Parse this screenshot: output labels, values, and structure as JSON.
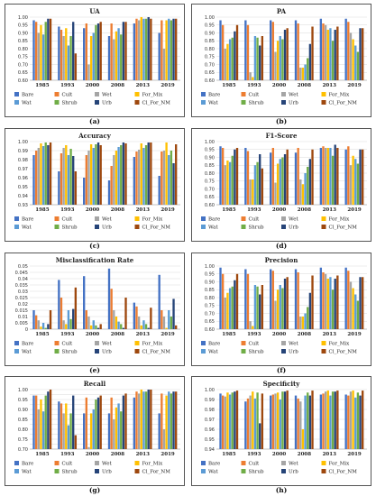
{
  "series": [
    {
      "name": "Bare",
      "color": "#4472C4"
    },
    {
      "name": "Cult",
      "color": "#ED7D31"
    },
    {
      "name": "Wet",
      "color": "#A5A5A5"
    },
    {
      "name": "For_Mix",
      "color": "#FFC000"
    },
    {
      "name": "Wat",
      "color": "#5B9BD5"
    },
    {
      "name": "Shrub",
      "color": "#70AD47"
    },
    {
      "name": "Urb",
      "color": "#264478"
    },
    {
      "name": "Cl_For_NM",
      "color": "#9E480E"
    }
  ],
  "panel_labels": [
    "(a)",
    "(b)",
    "(c)",
    "(d)",
    "(e)",
    "(f)",
    "(g)",
    "(h)"
  ],
  "chart_data": [
    {
      "type": "bar",
      "title": "UA",
      "categories": [
        "1985",
        "1993",
        "2000",
        "2008",
        "2013",
        "2019"
      ],
      "ylim": [
        0.6,
        1.0
      ],
      "ticks": [
        0.6,
        0.65,
        0.7,
        0.75,
        0.8,
        0.85,
        0.9,
        0.95,
        1.0
      ],
      "tick_labels": [
        "0.60",
        "0.65",
        "0.70",
        "0.75",
        "0.80",
        "0.85",
        "0.90",
        "0.95",
        "1.00"
      ],
      "legend": "bottom",
      "series": [
        {
          "name": "Bare",
          "values": [
            0.98,
            0.94,
            0.93,
            0.88,
            0.96,
            0.9
          ]
        },
        {
          "name": "Cult",
          "values": [
            0.97,
            0.92,
            0.96,
            0.96,
            0.99,
            0.98
          ]
        },
        {
          "name": "Wet",
          "values": [
            0.9,
            0.88,
            0.7,
            0.86,
            0.98,
            0.8
          ]
        },
        {
          "name": "For_Mix",
          "values": [
            0.95,
            0.93,
            0.88,
            0.91,
            1.0,
            0.98
          ]
        },
        {
          "name": "Wat",
          "values": [
            0.89,
            0.82,
            0.9,
            0.93,
            0.99,
            0.99
          ]
        },
        {
          "name": "Shrub",
          "values": [
            0.97,
            0.88,
            0.95,
            0.89,
            0.99,
            0.98
          ]
        },
        {
          "name": "Urb",
          "values": [
            0.99,
            0.97,
            0.96,
            0.97,
            1.0,
            0.99
          ]
        },
        {
          "name": "Cl_For_NM",
          "values": [
            0.99,
            0.77,
            0.97,
            0.97,
            0.99,
            0.99
          ]
        }
      ]
    },
    {
      "type": "bar",
      "title": "PA",
      "categories": [
        "1985",
        "1993",
        "2000",
        "2008",
        "2013",
        "2019"
      ],
      "ylim": [
        0.6,
        1.0
      ],
      "ticks": [
        0.6,
        0.65,
        0.7,
        0.75,
        0.8,
        0.85,
        0.9,
        0.95,
        1.0
      ],
      "tick_labels": [
        "0.60",
        "0.65",
        "0.70",
        "0.75",
        "0.80",
        "0.85",
        "0.90",
        "0.95",
        "1.00"
      ],
      "legend": "bottom",
      "series": [
        {
          "name": "Bare",
          "values": [
            0.98,
            0.98,
            0.98,
            0.98,
            0.99,
            0.99
          ]
        },
        {
          "name": "Cult",
          "values": [
            0.95,
            0.95,
            0.97,
            0.96,
            0.96,
            0.97
          ]
        },
        {
          "name": "Wet",
          "values": [
            0.8,
            0.65,
            0.78,
            0.68,
            0.95,
            0.9
          ]
        },
        {
          "name": "For_Mix",
          "values": [
            0.83,
            0.62,
            0.85,
            0.68,
            0.92,
            0.86
          ]
        },
        {
          "name": "Wat",
          "values": [
            0.86,
            0.88,
            0.88,
            0.7,
            0.93,
            0.82
          ]
        },
        {
          "name": "Shrub",
          "values": [
            0.87,
            0.87,
            0.86,
            0.74,
            0.85,
            0.78
          ]
        },
        {
          "name": "Urb",
          "values": [
            0.91,
            0.82,
            0.92,
            0.83,
            0.92,
            0.93
          ]
        },
        {
          "name": "Cl_For_NM",
          "values": [
            0.95,
            0.88,
            0.93,
            0.94,
            0.94,
            0.93
          ]
        }
      ]
    },
    {
      "type": "bar",
      "title": "Accuracy",
      "categories": [
        "1985",
        "1993",
        "2000",
        "2008",
        "2013",
        "2019"
      ],
      "ylim": [
        0.93,
        1.0
      ],
      "ticks": [
        0.93,
        0.94,
        0.95,
        0.96,
        0.97,
        0.98,
        0.99,
        1.0
      ],
      "tick_labels": [
        "0.93",
        "0.94",
        "0.95",
        "0.96",
        "0.97",
        "0.98",
        "0.99",
        "1.00"
      ],
      "legend": "bottom",
      "series": [
        {
          "name": "Bare",
          "values": [
            0.985,
            0.967,
            0.96,
            0.957,
            0.983,
            0.962
          ]
        },
        {
          "name": "Cult",
          "values": [
            0.99,
            0.987,
            0.985,
            0.973,
            0.989,
            0.989
          ]
        },
        {
          "name": "Wet",
          "values": [
            0.993,
            0.993,
            0.99,
            0.985,
            0.991,
            0.99
          ]
        },
        {
          "name": "For_Mix",
          "values": [
            0.998,
            0.996,
            0.997,
            0.99,
            0.998,
            0.999
          ]
        },
        {
          "name": "Wat",
          "values": [
            0.995,
            0.985,
            0.993,
            0.994,
            0.993,
            0.985
          ]
        },
        {
          "name": "Shrub",
          "values": [
            0.999,
            0.992,
            0.997,
            0.996,
            0.996,
            0.99
          ]
        },
        {
          "name": "Urb",
          "values": [
            0.996,
            0.984,
            0.999,
            0.999,
            0.999,
            0.976
          ]
        },
        {
          "name": "Cl_For_NM",
          "values": [
            0.999,
            0.967,
            0.996,
            0.998,
            0.999,
            0.997
          ]
        }
      ]
    },
    {
      "type": "bar",
      "title": "F1-Score",
      "categories": [
        "1985",
        "1993",
        "2000",
        "2008",
        "2013",
        "2019"
      ],
      "ylim": [
        0.6,
        1.0
      ],
      "ticks": [
        0.6,
        0.65,
        0.7,
        0.75,
        0.8,
        0.85,
        0.9,
        0.95,
        1.0
      ],
      "tick_labels": [
        "0.60",
        "0.65",
        "0.70",
        "0.75",
        "0.80",
        "0.85",
        "0.90",
        "0.95",
        "1.00"
      ],
      "legend": "bottom",
      "series": [
        {
          "name": "Bare",
          "values": [
            0.97,
            0.96,
            0.93,
            0.93,
            0.96,
            0.95
          ]
        },
        {
          "name": "Cult",
          "values": [
            0.96,
            0.94,
            0.96,
            0.96,
            0.97,
            0.97
          ]
        },
        {
          "name": "Wet",
          "values": [
            0.85,
            0.76,
            0.74,
            0.76,
            0.96,
            0.85
          ]
        },
        {
          "name": "For_Mix",
          "values": [
            0.88,
            0.76,
            0.86,
            0.73,
            0.96,
            0.91
          ]
        },
        {
          "name": "Wat",
          "values": [
            0.87,
            0.85,
            0.89,
            0.8,
            0.96,
            0.89
          ]
        },
        {
          "name": "Shrub",
          "values": [
            0.91,
            0.87,
            0.9,
            0.84,
            0.91,
            0.86
          ]
        },
        {
          "name": "Urb",
          "values": [
            0.95,
            0.92,
            0.92,
            0.89,
            0.98,
            0.95
          ]
        },
        {
          "name": "Cl_For_NM",
          "values": [
            0.96,
            0.83,
            0.95,
            0.95,
            0.96,
            0.95
          ]
        }
      ]
    },
    {
      "type": "bar",
      "title": "Misclassification Rate",
      "categories": [
        "1985",
        "1993",
        "2000",
        "2008",
        "2013",
        "2019"
      ],
      "ylim": [
        0,
        0.05
      ],
      "ticks": [
        0,
        0.005,
        0.01,
        0.015,
        0.02,
        0.025,
        0.03,
        0.035,
        0.04,
        0.045,
        0.05
      ],
      "tick_labels": [
        "0",
        "0.005",
        "0.01",
        "0.015",
        "0.02",
        "0.025",
        "0.03",
        "0.035",
        "0.04",
        "0.045",
        "0.05"
      ],
      "legend": "bottom",
      "series": [
        {
          "name": "Bare",
          "values": [
            0.015,
            0.039,
            0.042,
            0.048,
            0.021,
            0.043
          ]
        },
        {
          "name": "Cult",
          "values": [
            0.011,
            0.025,
            0.015,
            0.032,
            0.018,
            0.015
          ]
        },
        {
          "name": "Wet",
          "values": [
            0.007,
            0.007,
            0.01,
            0.015,
            0.01,
            0.01
          ]
        },
        {
          "name": "For_Mix",
          "values": [
            0.002,
            0.004,
            0.003,
            0.01,
            0.003,
            0.001
          ]
        },
        {
          "name": "Wat",
          "values": [
            0.005,
            0.015,
            0.007,
            0.006,
            0.007,
            0.015
          ]
        },
        {
          "name": "Shrub",
          "values": [
            0.001,
            0.008,
            0.003,
            0.004,
            0.004,
            0.01
          ]
        },
        {
          "name": "Urb",
          "values": [
            0.004,
            0.016,
            0.001,
            0.001,
            0.001,
            0.024
          ]
        },
        {
          "name": "Cl_For_NM",
          "values": [
            0.015,
            0.033,
            0.004,
            0.025,
            0.017,
            0.003
          ]
        }
      ]
    },
    {
      "type": "bar",
      "title": "Precision",
      "categories": [
        "1985",
        "1993",
        "2000",
        "2008",
        "2013",
        "2019"
      ],
      "ylim": [
        0.6,
        1.0
      ],
      "ticks": [
        0.6,
        0.65,
        0.7,
        0.75,
        0.8,
        0.85,
        0.9,
        0.95,
        1.0
      ],
      "tick_labels": [
        "0.60",
        "0.65",
        "0.70",
        "0.75",
        "0.80",
        "0.85",
        "0.90",
        "0.95",
        "1.00"
      ],
      "legend": "bottom",
      "series": [
        {
          "name": "Bare",
          "values": [
            0.99,
            0.98,
            0.98,
            0.98,
            0.99,
            0.99
          ]
        },
        {
          "name": "Cult",
          "values": [
            0.95,
            0.95,
            0.97,
            0.96,
            0.96,
            0.97
          ]
        },
        {
          "name": "Wet",
          "values": [
            0.8,
            0.65,
            0.78,
            0.68,
            0.95,
            0.9
          ]
        },
        {
          "name": "For_Mix",
          "values": [
            0.83,
            0.62,
            0.85,
            0.68,
            0.92,
            0.86
          ]
        },
        {
          "name": "Wat",
          "values": [
            0.86,
            0.88,
            0.88,
            0.7,
            0.93,
            0.82
          ]
        },
        {
          "name": "Shrub",
          "values": [
            0.87,
            0.87,
            0.86,
            0.74,
            0.85,
            0.78
          ]
        },
        {
          "name": "Urb",
          "values": [
            0.91,
            0.82,
            0.92,
            0.83,
            0.92,
            0.93
          ]
        },
        {
          "name": "Cl_For_NM",
          "values": [
            0.95,
            0.88,
            0.93,
            0.94,
            0.94,
            0.93
          ]
        }
      ]
    },
    {
      "type": "bar",
      "title": "Recall",
      "categories": [
        "1985",
        "1993",
        "2000",
        "2008",
        "2013",
        "2019"
      ],
      "ylim": [
        0.7,
        1.0
      ],
      "ticks": [
        0.7,
        0.725,
        0.75,
        0.775,
        0.8,
        0.825,
        0.85,
        0.875,
        0.9,
        0.925,
        0.95,
        0.975,
        1.0
      ],
      "tick_labels": [
        "0.70",
        "",
        "0.75",
        "",
        "0.80",
        "",
        "0.85",
        "",
        "0.90",
        "",
        "0.95",
        "",
        "1.00"
      ],
      "legend": "bottom",
      "series": [
        {
          "name": "Bare",
          "values": [
            0.97,
            0.94,
            0.88,
            0.88,
            0.96,
            0.88
          ]
        },
        {
          "name": "Cult",
          "values": [
            0.97,
            0.93,
            0.96,
            0.96,
            0.99,
            0.98
          ]
        },
        {
          "name": "Wet",
          "values": [
            0.9,
            0.88,
            0.71,
            0.85,
            0.98,
            0.8
          ]
        },
        {
          "name": "For_Mix",
          "values": [
            0.95,
            0.93,
            0.88,
            0.91,
            1.0,
            0.97
          ]
        },
        {
          "name": "Wat",
          "values": [
            0.89,
            0.82,
            0.9,
            0.93,
            0.99,
            0.99
          ]
        },
        {
          "name": "Shrub",
          "values": [
            0.97,
            0.88,
            0.95,
            0.89,
            0.99,
            0.98
          ]
        },
        {
          "name": "Urb",
          "values": [
            0.99,
            0.97,
            0.96,
            0.97,
            1.0,
            0.99
          ]
        },
        {
          "name": "Cl_For_NM",
          "values": [
            1.0,
            0.77,
            0.97,
            0.98,
            1.0,
            0.99
          ]
        }
      ]
    },
    {
      "type": "bar",
      "title": "Specificity",
      "categories": [
        "1985",
        "1993",
        "2000",
        "2008",
        "2013",
        "2019"
      ],
      "ylim": [
        0.94,
        1.0
      ],
      "ticks": [
        0.94,
        0.95,
        0.96,
        0.97,
        0.98,
        0.99,
        1.0
      ],
      "tick_labels": [
        "0.94",
        "0.95",
        "0.96",
        "0.97",
        "0.98",
        "0.99",
        "1.00"
      ],
      "legend": "bottom",
      "series": [
        {
          "name": "Bare",
          "values": [
            0.996,
            0.988,
            0.994,
            0.994,
            0.995,
            0.995
          ]
        },
        {
          "name": "Cult",
          "values": [
            0.994,
            0.991,
            0.995,
            0.991,
            0.996,
            0.994
          ]
        },
        {
          "name": "Wet",
          "values": [
            0.993,
            0.994,
            0.996,
            0.988,
            0.998,
            0.998
          ]
        },
        {
          "name": "For_Mix",
          "values": [
            0.997,
            0.998,
            0.997,
            0.96,
            0.999,
            0.999
          ]
        },
        {
          "name": "Wat",
          "values": [
            0.995,
            0.991,
            0.99,
            0.994,
            0.994,
            0.992
          ]
        },
        {
          "name": "Shrub",
          "values": [
            0.997,
            0.997,
            0.998,
            0.997,
            0.998,
            0.997
          ]
        },
        {
          "name": "Urb",
          "values": [
            0.998,
            0.966,
            0.998,
            0.994,
            0.998,
            0.994
          ]
        },
        {
          "name": "Cl_For_NM",
          "values": [
            0.999,
            0.996,
            0.999,
            0.999,
            0.999,
            0.999
          ]
        }
      ]
    }
  ]
}
